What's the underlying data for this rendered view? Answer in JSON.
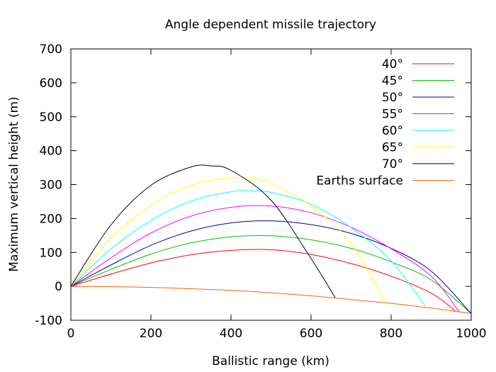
{
  "chart_data": {
    "type": "line",
    "title": "Angle dependent missile trajectory",
    "xlabel": "Ballistic range (km)",
    "ylabel": "Maximum vertical height (m)",
    "xlim": [
      0,
      1000
    ],
    "ylim": [
      -100,
      700
    ],
    "xticks": [
      0,
      200,
      400,
      600,
      800,
      1000
    ],
    "yticks": [
      -100,
      0,
      100,
      200,
      300,
      400,
      500,
      600,
      700
    ],
    "grid": false,
    "legend_position": "top-right",
    "series": [
      {
        "name": "40°",
        "color": "#ff0000",
        "x": [
          0,
          100,
          200,
          300,
          400,
          500,
          600,
          700,
          800,
          900,
          960
        ],
        "y": [
          0,
          36,
          69,
          93,
          106,
          108,
          94,
          67,
          30,
          -20,
          -72
        ]
      },
      {
        "name": "45°",
        "color": "#00c000",
        "x": [
          0,
          100,
          200,
          300,
          400,
          500,
          600,
          700,
          800,
          900,
          1000
        ],
        "y": [
          0,
          50,
          95,
          128,
          146,
          149,
          137,
          112,
          72,
          19,
          -80
        ]
      },
      {
        "name": "50°",
        "color": "#0000a0",
        "x": [
          0,
          100,
          200,
          300,
          400,
          500,
          600,
          700,
          800,
          900,
          1000
        ],
        "y": [
          0,
          63,
          121,
          163,
          187,
          193,
          182,
          156,
          112,
          45,
          -80
        ]
      },
      {
        "name": "55°",
        "color": "#ff00ff",
        "x": [
          0,
          100,
          200,
          300,
          400,
          500,
          600,
          700,
          800,
          900,
          970
        ],
        "y": [
          0,
          84,
          157,
          207,
          233,
          237,
          217,
          174,
          111,
          30,
          -75
        ]
      },
      {
        "name": "60°",
        "color": "#00ffff",
        "x": [
          0,
          100,
          200,
          300,
          400,
          450,
          500,
          600,
          700,
          800,
          885
        ],
        "y": [
          0,
          110,
          194,
          251,
          279,
          281,
          277,
          242,
          173,
          75,
          -58
        ]
      },
      {
        "name": "65°",
        "color": "#ffff00",
        "x": [
          0,
          100,
          200,
          300,
          400,
          450,
          500,
          600,
          700,
          785
        ],
        "y": [
          0,
          141,
          239,
          298,
          320,
          318,
          305,
          237,
          127,
          -48
        ]
      },
      {
        "name": "70°",
        "color": "#000000",
        "x": [
          0,
          100,
          200,
          300,
          350,
          400,
          500,
          600,
          660
        ],
        "y": [
          0,
          181,
          298,
          352,
          355,
          342,
          254,
          82,
          -33
        ]
      },
      {
        "name": "Earths surface",
        "color": "#ff6000",
        "x": [
          0,
          100,
          200,
          300,
          400,
          500,
          600,
          700,
          800,
          900,
          1000
        ],
        "y": [
          0,
          -1,
          -3,
          -7,
          -12,
          -19,
          -28,
          -39,
          -50,
          -64,
          -80
        ]
      }
    ]
  }
}
